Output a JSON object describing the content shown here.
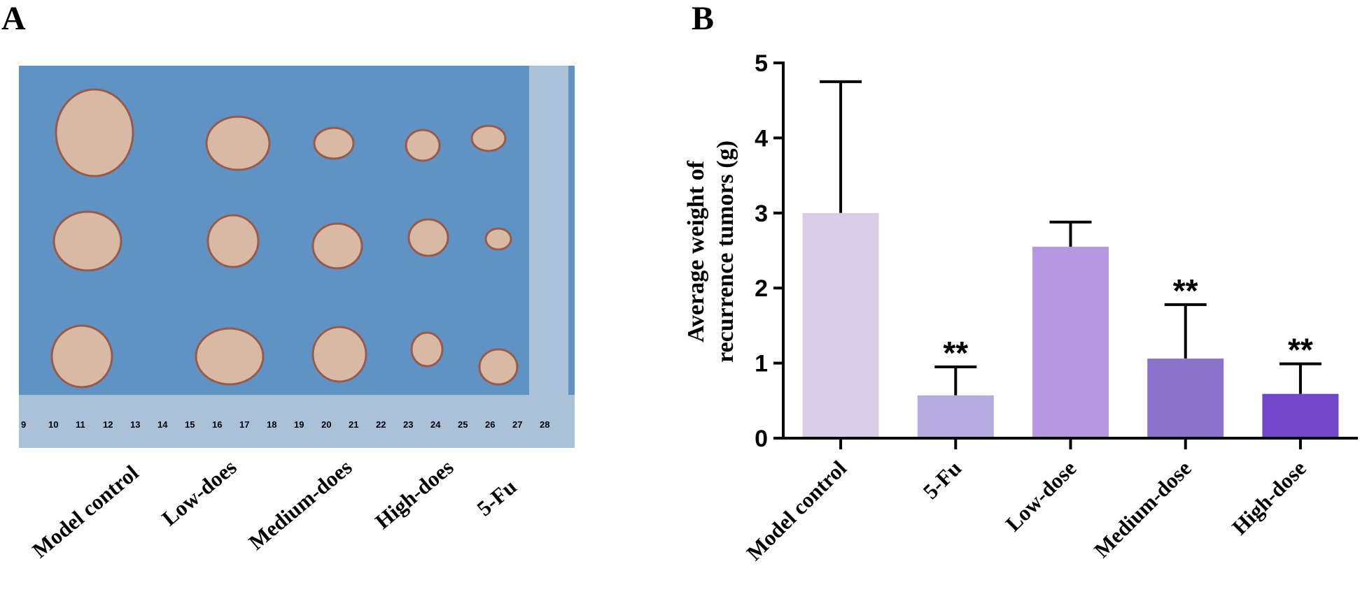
{
  "panel_a": {
    "label": "A",
    "photo_ruler_labels": [
      "9",
      "10",
      "11",
      "12",
      "13",
      "14",
      "15",
      "16",
      "17",
      "18",
      "19",
      "20",
      "21",
      "22",
      "23",
      "24",
      "25",
      "26",
      "27",
      "28"
    ],
    "group_labels": [
      "Model control",
      "Low-does",
      "Medium-does",
      "High-does",
      "5-Fu"
    ]
  },
  "chart_data": {
    "type": "bar",
    "panel_label": "B",
    "y_label": [
      "Average weight of",
      "recurrence tumors (g)"
    ],
    "categories": [
      "Model control",
      "5-Fu",
      "Low-dose",
      "Medium-dose",
      "High-dose"
    ],
    "values": [
      3.0,
      0.57,
      2.55,
      1.06,
      0.59
    ],
    "errors": [
      1.75,
      0.38,
      0.33,
      0.72,
      0.4
    ],
    "significance": [
      null,
      "**",
      null,
      "**",
      "**"
    ],
    "colors": [
      "#d9cee6",
      "#b5abe1",
      "#b596e0",
      "#8a72cd",
      "#7147c9"
    ],
    "ylim": [
      0,
      5
    ],
    "yticks": [
      0,
      1,
      2,
      3,
      4,
      5
    ]
  }
}
